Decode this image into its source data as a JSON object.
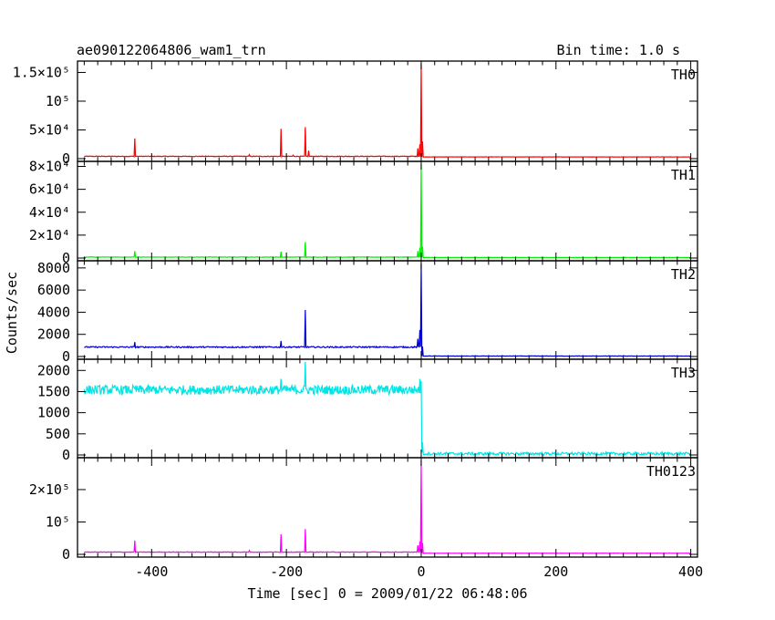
{
  "header": {
    "title": "ae090122064806_wam1_trn",
    "bin_time": "Bin time: 1.0 s"
  },
  "chart_data": {
    "type": "line",
    "xlabel": "Time [sec] 0 = 2009/01/22 06:48:06",
    "ylabel": "Counts/sec",
    "xlim": [
      -510,
      410
    ],
    "x_ticks": [
      -400,
      -200,
      0,
      200,
      400
    ],
    "grid": false,
    "panels": [
      {
        "name": "TH0",
        "color": "#ff0000",
        "ylim": [
          0,
          165000
        ],
        "ticks": [
          {
            "v": 0,
            "t": "0"
          },
          {
            "v": 50000,
            "t": "5×10⁴"
          },
          {
            "v": 100000,
            "t": "10⁵"
          },
          {
            "v": 150000,
            "t": "1.5×10⁵"
          }
        ],
        "baseline_pre": 4000,
        "baseline_post": 3000,
        "noise": 600,
        "spikes": [
          {
            "x": -425,
            "y": 35000
          },
          {
            "x": -255,
            "y": 7000
          },
          {
            "x": -208,
            "y": 52000
          },
          {
            "x": -190,
            "y": 6000
          },
          {
            "x": -172,
            "y": 55000
          },
          {
            "x": -167,
            "y": 14000
          },
          {
            "x": -5,
            "y": 18000
          },
          {
            "x": -2,
            "y": 25000
          },
          {
            "x": 0,
            "y": 165000
          },
          {
            "x": 2,
            "y": 30000
          }
        ]
      },
      {
        "name": "TH1",
        "color": "#00ee00",
        "ylim": [
          0,
          82000
        ],
        "ticks": [
          {
            "v": 0,
            "t": "0"
          },
          {
            "v": 20000,
            "t": "2×10⁴"
          },
          {
            "v": 40000,
            "t": "4×10⁴"
          },
          {
            "v": 60000,
            "t": "6×10⁴"
          },
          {
            "v": 80000,
            "t": "8×10⁴"
          }
        ],
        "baseline_pre": 800,
        "baseline_post": 500,
        "noise": 200,
        "spikes": [
          {
            "x": -425,
            "y": 6000
          },
          {
            "x": -208,
            "y": 5500
          },
          {
            "x": -172,
            "y": 14000
          },
          {
            "x": -5,
            "y": 6000
          },
          {
            "x": -2,
            "y": 9000
          },
          {
            "x": 0,
            "y": 82000
          },
          {
            "x": 2,
            "y": 10000
          }
        ]
      },
      {
        "name": "TH2",
        "color": "#0000cc",
        "ylim": [
          0,
          8400
        ],
        "ticks": [
          {
            "v": 0,
            "t": "0"
          },
          {
            "v": 2000,
            "t": "2000"
          },
          {
            "v": 4000,
            "t": "4000"
          },
          {
            "v": 6000,
            "t": "6000"
          },
          {
            "v": 8000,
            "t": "8000"
          }
        ],
        "baseline_pre": 850,
        "baseline_post": 40,
        "noise": 60,
        "spikes": [
          {
            "x": -425,
            "y": 1300
          },
          {
            "x": -208,
            "y": 1400
          },
          {
            "x": -172,
            "y": 4200
          },
          {
            "x": -5,
            "y": 1600
          },
          {
            "x": -2,
            "y": 2400
          },
          {
            "x": 0,
            "y": 8400
          },
          {
            "x": 2,
            "y": 900
          }
        ]
      },
      {
        "name": "TH3",
        "color": "#00e5e5",
        "ylim": [
          0,
          2200
        ],
        "ticks": [
          {
            "v": 0,
            "t": "0"
          },
          {
            "v": 500,
            "t": "500"
          },
          {
            "v": 1000,
            "t": "1000"
          },
          {
            "v": 1500,
            "t": "1500"
          },
          {
            "v": 2000,
            "t": "2000"
          }
        ],
        "baseline_pre": 1540,
        "baseline_post": 30,
        "noise": 110,
        "spikes": [
          {
            "x": -208,
            "y": 1800
          },
          {
            "x": -172,
            "y": 2200
          },
          {
            "x": -2,
            "y": 1800
          },
          {
            "x": 0,
            "y": 1750
          },
          {
            "x": 2,
            "y": 300
          }
        ]
      },
      {
        "name": "TH0123",
        "color": "#ff00ff",
        "ylim": [
          0,
          290000
        ],
        "ticks": [
          {
            "v": 0,
            "t": "0"
          },
          {
            "v": 100000,
            "t": "10⁵"
          },
          {
            "v": 200000,
            "t": "2×10⁵"
          }
        ],
        "baseline_pre": 7000,
        "baseline_post": 3500,
        "noise": 900,
        "spikes": [
          {
            "x": -425,
            "y": 43000
          },
          {
            "x": -255,
            "y": 12000
          },
          {
            "x": -208,
            "y": 62000
          },
          {
            "x": -172,
            "y": 78000
          },
          {
            "x": -5,
            "y": 28000
          },
          {
            "x": -2,
            "y": 40000
          },
          {
            "x": 0,
            "y": 290000
          },
          {
            "x": 2,
            "y": 35000
          }
        ]
      }
    ]
  }
}
